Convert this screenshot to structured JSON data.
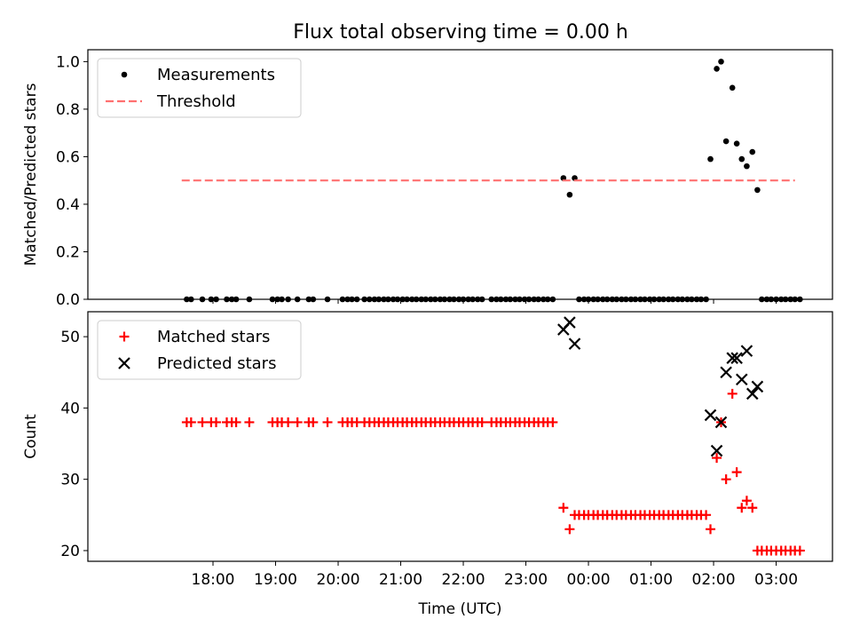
{
  "figure": {
    "title": "Flux total observing time = 0.00 h"
  },
  "chart_data": [
    {
      "type": "scatter",
      "title": "Flux total observing time = 0.00 h",
      "xlabel": "",
      "ylabel": "Matched/Predicted stars",
      "ylim": [
        0.0,
        1.05
      ],
      "yticks": [
        0.0,
        0.2,
        0.4,
        0.6,
        0.8,
        1.0
      ],
      "ytick_labels": [
        "0.0",
        "0.2",
        "0.4",
        "0.6",
        "0.8",
        "1.0"
      ],
      "x_unit": "hours since 17:00 UTC",
      "xlim": [
        -1.0,
        10.9
      ],
      "xticks": [
        1,
        2,
        3,
        4,
        5,
        6,
        7,
        8,
        9,
        10
      ],
      "xtick_labels": [
        "18:00",
        "19:00",
        "20:00",
        "21:00",
        "22:00",
        "23:00",
        "00:00",
        "01:00",
        "02:00",
        "03:00"
      ],
      "legend": {
        "position": "upper left",
        "entries": [
          "Measurements",
          "Threshold"
        ]
      },
      "series": [
        {
          "name": "Measurements",
          "marker": "dot",
          "color": "#000000",
          "points": [
            [
              0.58,
              0
            ],
            [
              0.65,
              0
            ],
            [
              0.83,
              0
            ],
            [
              0.97,
              0
            ],
            [
              1.05,
              0
            ],
            [
              1.22,
              0
            ],
            [
              1.3,
              0
            ],
            [
              1.37,
              0
            ],
            [
              1.58,
              0
            ],
            [
              1.95,
              0
            ],
            [
              2.03,
              0
            ],
            [
              2.1,
              0
            ],
            [
              2.2,
              0
            ],
            [
              2.35,
              0
            ],
            [
              2.53,
              0
            ],
            [
              2.6,
              0
            ],
            [
              2.83,
              0
            ],
            [
              3.07,
              0
            ],
            [
              3.15,
              0
            ],
            [
              3.22,
              0
            ],
            [
              3.3,
              0
            ],
            [
              3.42,
              0
            ],
            [
              3.5,
              0
            ],
            [
              3.58,
              0
            ],
            [
              3.65,
              0
            ],
            [
              3.73,
              0
            ],
            [
              3.8,
              0
            ],
            [
              3.88,
              0
            ],
            [
              3.95,
              0
            ],
            [
              4.03,
              0
            ],
            [
              4.1,
              0
            ],
            [
              4.18,
              0
            ],
            [
              4.25,
              0
            ],
            [
              4.33,
              0
            ],
            [
              4.4,
              0
            ],
            [
              4.48,
              0
            ],
            [
              4.55,
              0
            ],
            [
              4.63,
              0
            ],
            [
              4.7,
              0
            ],
            [
              4.78,
              0
            ],
            [
              4.85,
              0
            ],
            [
              4.93,
              0
            ],
            [
              5.0,
              0
            ],
            [
              5.08,
              0
            ],
            [
              5.15,
              0
            ],
            [
              5.23,
              0
            ],
            [
              5.3,
              0
            ],
            [
              5.45,
              0
            ],
            [
              5.53,
              0
            ],
            [
              5.6,
              0
            ],
            [
              5.68,
              0
            ],
            [
              5.75,
              0
            ],
            [
              5.83,
              0
            ],
            [
              5.9,
              0
            ],
            [
              5.98,
              0
            ],
            [
              6.05,
              0
            ],
            [
              6.13,
              0
            ],
            [
              6.2,
              0
            ],
            [
              6.28,
              0
            ],
            [
              6.35,
              0
            ],
            [
              6.43,
              0
            ],
            [
              6.6,
              0.51
            ],
            [
              6.7,
              0.44
            ],
            [
              6.78,
              0.51
            ],
            [
              6.85,
              0
            ],
            [
              6.93,
              0
            ],
            [
              7.0,
              0
            ],
            [
              7.08,
              0
            ],
            [
              7.15,
              0
            ],
            [
              7.23,
              0
            ],
            [
              7.3,
              0
            ],
            [
              7.38,
              0
            ],
            [
              7.45,
              0
            ],
            [
              7.53,
              0
            ],
            [
              7.6,
              0
            ],
            [
              7.68,
              0
            ],
            [
              7.75,
              0
            ],
            [
              7.83,
              0
            ],
            [
              7.9,
              0
            ],
            [
              7.98,
              0
            ],
            [
              8.05,
              0
            ],
            [
              8.13,
              0
            ],
            [
              8.2,
              0
            ],
            [
              8.28,
              0
            ],
            [
              8.35,
              0
            ],
            [
              8.43,
              0
            ],
            [
              8.5,
              0
            ],
            [
              8.58,
              0
            ],
            [
              8.65,
              0
            ],
            [
              8.73,
              0
            ],
            [
              8.8,
              0
            ],
            [
              8.88,
              0
            ],
            [
              8.95,
              0.59
            ],
            [
              9.05,
              0.97
            ],
            [
              9.12,
              1.0
            ],
            [
              9.2,
              0.665
            ],
            [
              9.3,
              0.89
            ],
            [
              9.37,
              0.655
            ],
            [
              9.45,
              0.59
            ],
            [
              9.53,
              0.56
            ],
            [
              9.62,
              0.62
            ],
            [
              9.7,
              0.46
            ],
            [
              9.77,
              0
            ],
            [
              9.85,
              0
            ],
            [
              9.92,
              0
            ],
            [
              10.0,
              0
            ],
            [
              10.08,
              0
            ],
            [
              10.15,
              0
            ],
            [
              10.23,
              0
            ],
            [
              10.3,
              0
            ],
            [
              10.38,
              0
            ]
          ]
        },
        {
          "name": "Threshold",
          "style": "dashed",
          "color": "#ff7070",
          "points": [
            [
              0.5,
              0.5
            ],
            [
              10.3,
              0.5
            ]
          ]
        }
      ]
    },
    {
      "type": "scatter",
      "title": "",
      "xlabel": "Time (UTC)",
      "ylabel": "Count",
      "ylim": [
        18.5,
        53.5
      ],
      "yticks": [
        20,
        30,
        40,
        50
      ],
      "ytick_labels": [
        "20",
        "30",
        "40",
        "50"
      ],
      "x_unit": "hours since 17:00 UTC",
      "xlim": [
        -1.0,
        10.9
      ],
      "xticks": [
        1,
        2,
        3,
        4,
        5,
        6,
        7,
        8,
        9,
        10
      ],
      "xtick_labels": [
        "18:00",
        "19:00",
        "20:00",
        "21:00",
        "22:00",
        "23:00",
        "00:00",
        "01:00",
        "02:00",
        "03:00"
      ],
      "legend": {
        "position": "upper left",
        "entries": [
          "Matched stars",
          "Predicted stars"
        ]
      },
      "series": [
        {
          "name": "Matched stars",
          "marker": "plus",
          "color": "#ff0000",
          "points": [
            [
              0.58,
              38
            ],
            [
              0.65,
              38
            ],
            [
              0.83,
              38
            ],
            [
              0.97,
              38
            ],
            [
              1.05,
              38
            ],
            [
              1.22,
              38
            ],
            [
              1.3,
              38
            ],
            [
              1.37,
              38
            ],
            [
              1.58,
              38
            ],
            [
              1.95,
              38
            ],
            [
              2.03,
              38
            ],
            [
              2.1,
              38
            ],
            [
              2.2,
              38
            ],
            [
              2.35,
              38
            ],
            [
              2.53,
              38
            ],
            [
              2.6,
              38
            ],
            [
              2.83,
              38
            ],
            [
              3.07,
              38
            ],
            [
              3.15,
              38
            ],
            [
              3.22,
              38
            ],
            [
              3.3,
              38
            ],
            [
              3.42,
              38
            ],
            [
              3.5,
              38
            ],
            [
              3.58,
              38
            ],
            [
              3.65,
              38
            ],
            [
              3.73,
              38
            ],
            [
              3.8,
              38
            ],
            [
              3.88,
              38
            ],
            [
              3.95,
              38
            ],
            [
              4.03,
              38
            ],
            [
              4.1,
              38
            ],
            [
              4.18,
              38
            ],
            [
              4.25,
              38
            ],
            [
              4.33,
              38
            ],
            [
              4.4,
              38
            ],
            [
              4.48,
              38
            ],
            [
              4.55,
              38
            ],
            [
              4.63,
              38
            ],
            [
              4.7,
              38
            ],
            [
              4.78,
              38
            ],
            [
              4.85,
              38
            ],
            [
              4.93,
              38
            ],
            [
              5.0,
              38
            ],
            [
              5.08,
              38
            ],
            [
              5.15,
              38
            ],
            [
              5.23,
              38
            ],
            [
              5.3,
              38
            ],
            [
              5.45,
              38
            ],
            [
              5.53,
              38
            ],
            [
              5.6,
              38
            ],
            [
              5.68,
              38
            ],
            [
              5.75,
              38
            ],
            [
              5.83,
              38
            ],
            [
              5.9,
              38
            ],
            [
              5.98,
              38
            ],
            [
              6.05,
              38
            ],
            [
              6.13,
              38
            ],
            [
              6.2,
              38
            ],
            [
              6.28,
              38
            ],
            [
              6.35,
              38
            ],
            [
              6.43,
              38
            ],
            [
              6.6,
              26
            ],
            [
              6.7,
              23
            ],
            [
              6.78,
              25
            ],
            [
              6.85,
              25
            ],
            [
              6.93,
              25
            ],
            [
              7.0,
              25
            ],
            [
              7.08,
              25
            ],
            [
              7.15,
              25
            ],
            [
              7.23,
              25
            ],
            [
              7.3,
              25
            ],
            [
              7.38,
              25
            ],
            [
              7.45,
              25
            ],
            [
              7.53,
              25
            ],
            [
              7.6,
              25
            ],
            [
              7.68,
              25
            ],
            [
              7.75,
              25
            ],
            [
              7.83,
              25
            ],
            [
              7.9,
              25
            ],
            [
              7.98,
              25
            ],
            [
              8.05,
              25
            ],
            [
              8.13,
              25
            ],
            [
              8.2,
              25
            ],
            [
              8.28,
              25
            ],
            [
              8.35,
              25
            ],
            [
              8.43,
              25
            ],
            [
              8.5,
              25
            ],
            [
              8.58,
              25
            ],
            [
              8.65,
              25
            ],
            [
              8.73,
              25
            ],
            [
              8.8,
              25
            ],
            [
              8.88,
              25
            ],
            [
              8.95,
              23
            ],
            [
              9.05,
              33
            ],
            [
              9.12,
              38
            ],
            [
              9.2,
              30
            ],
            [
              9.3,
              42
            ],
            [
              9.37,
              31
            ],
            [
              9.45,
              26
            ],
            [
              9.53,
              27
            ],
            [
              9.62,
              26
            ],
            [
              9.7,
              20
            ],
            [
              9.77,
              20
            ],
            [
              9.85,
              20
            ],
            [
              9.92,
              20
            ],
            [
              10.0,
              20
            ],
            [
              10.08,
              20
            ],
            [
              10.15,
              20
            ],
            [
              10.23,
              20
            ],
            [
              10.3,
              20
            ],
            [
              10.38,
              20
            ]
          ]
        },
        {
          "name": "Predicted stars",
          "marker": "x",
          "color": "#000000",
          "points": [
            [
              6.6,
              51
            ],
            [
              6.7,
              52
            ],
            [
              6.78,
              49
            ],
            [
              8.95,
              39
            ],
            [
              9.05,
              34
            ],
            [
              9.12,
              38
            ],
            [
              9.2,
              45
            ],
            [
              9.3,
              47
            ],
            [
              9.37,
              47
            ],
            [
              9.45,
              44
            ],
            [
              9.53,
              48
            ],
            [
              9.62,
              42
            ],
            [
              9.7,
              43
            ]
          ]
        }
      ]
    }
  ]
}
